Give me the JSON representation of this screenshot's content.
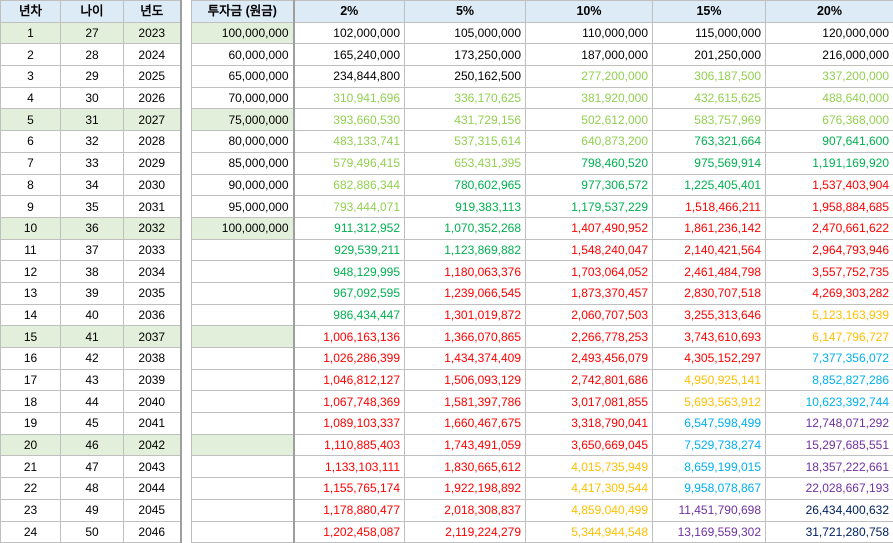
{
  "headers": {
    "year_no": "년차",
    "age": "나이",
    "year": "년도",
    "investment": "투자금 (원금)",
    "rates": [
      "2%",
      "5%",
      "10%",
      "15%",
      "20%"
    ]
  },
  "colors": {
    "black": "#000000",
    "lightgreen": "#92d050",
    "green": "#00b050",
    "red": "#ff0000",
    "orange": "#ffc000",
    "skyblue": "#00b0f0",
    "blue": "#0070c0",
    "purple": "#7030a0",
    "navy": "#002060",
    "row_highlight": "#e2efda",
    "header_bg": "#ddebf7"
  },
  "rows": [
    {
      "n": "1",
      "age": "27",
      "year": "2023",
      "invest": "100,000,000",
      "highlight": true,
      "vals": [
        "102,000,000",
        "105,000,000",
        "110,000,000",
        "115,000,000",
        "120,000,000"
      ],
      "colors": [
        "black",
        "black",
        "black",
        "black",
        "black"
      ]
    },
    {
      "n": "2",
      "age": "28",
      "year": "2024",
      "invest": "60,000,000",
      "highlight": false,
      "vals": [
        "165,240,000",
        "173,250,000",
        "187,000,000",
        "201,250,000",
        "216,000,000"
      ],
      "colors": [
        "black",
        "black",
        "black",
        "black",
        "black"
      ]
    },
    {
      "n": "3",
      "age": "29",
      "year": "2025",
      "invest": "65,000,000",
      "highlight": false,
      "vals": [
        "234,844,800",
        "250,162,500",
        "277,200,000",
        "306,187,500",
        "337,200,000"
      ],
      "colors": [
        "black",
        "black",
        "lightgreen",
        "lightgreen",
        "lightgreen"
      ]
    },
    {
      "n": "4",
      "age": "30",
      "year": "2026",
      "invest": "70,000,000",
      "highlight": false,
      "vals": [
        "310,941,696",
        "336,170,625",
        "381,920,000",
        "432,615,625",
        "488,640,000"
      ],
      "colors": [
        "lightgreen",
        "lightgreen",
        "lightgreen",
        "lightgreen",
        "lightgreen"
      ]
    },
    {
      "n": "5",
      "age": "31",
      "year": "2027",
      "invest": "75,000,000",
      "highlight": true,
      "vals": [
        "393,660,530",
        "431,729,156",
        "502,612,000",
        "583,757,969",
        "676,368,000"
      ],
      "colors": [
        "lightgreen",
        "lightgreen",
        "lightgreen",
        "lightgreen",
        "lightgreen"
      ]
    },
    {
      "n": "6",
      "age": "32",
      "year": "2028",
      "invest": "80,000,000",
      "highlight": false,
      "vals": [
        "483,133,741",
        "537,315,614",
        "640,873,200",
        "763,321,664",
        "907,641,600"
      ],
      "colors": [
        "lightgreen",
        "lightgreen",
        "lightgreen",
        "green",
        "green"
      ]
    },
    {
      "n": "7",
      "age": "33",
      "year": "2029",
      "invest": "85,000,000",
      "highlight": false,
      "vals": [
        "579,496,415",
        "653,431,395",
        "798,460,520",
        "975,569,914",
        "1,191,169,920"
      ],
      "colors": [
        "lightgreen",
        "lightgreen",
        "green",
        "green",
        "green"
      ]
    },
    {
      "n": "8",
      "age": "34",
      "year": "2030",
      "invest": "90,000,000",
      "highlight": false,
      "vals": [
        "682,886,344",
        "780,602,965",
        "977,306,572",
        "1,225,405,401",
        "1,537,403,904"
      ],
      "colors": [
        "lightgreen",
        "green",
        "green",
        "green",
        "red"
      ]
    },
    {
      "n": "9",
      "age": "35",
      "year": "2031",
      "invest": "95,000,000",
      "highlight": false,
      "vals": [
        "793,444,071",
        "919,383,113",
        "1,179,537,229",
        "1,518,466,211",
        "1,958,884,685"
      ],
      "colors": [
        "lightgreen",
        "green",
        "green",
        "red",
        "red"
      ]
    },
    {
      "n": "10",
      "age": "36",
      "year": "2032",
      "invest": "100,000,000",
      "highlight": true,
      "vals": [
        "911,312,952",
        "1,070,352,268",
        "1,407,490,952",
        "1,861,236,142",
        "2,470,661,622"
      ],
      "colors": [
        "green",
        "green",
        "red",
        "red",
        "red"
      ]
    },
    {
      "n": "11",
      "age": "37",
      "year": "2033",
      "invest": "",
      "highlight": false,
      "vals": [
        "929,539,211",
        "1,123,869,882",
        "1,548,240,047",
        "2,140,421,564",
        "2,964,793,946"
      ],
      "colors": [
        "green",
        "green",
        "red",
        "red",
        "red"
      ]
    },
    {
      "n": "12",
      "age": "38",
      "year": "2034",
      "invest": "",
      "highlight": false,
      "vals": [
        "948,129,995",
        "1,180,063,376",
        "1,703,064,052",
        "2,461,484,798",
        "3,557,752,735"
      ],
      "colors": [
        "green",
        "red",
        "red",
        "red",
        "red"
      ]
    },
    {
      "n": "13",
      "age": "39",
      "year": "2035",
      "invest": "",
      "highlight": false,
      "vals": [
        "967,092,595",
        "1,239,066,545",
        "1,873,370,457",
        "2,830,707,518",
        "4,269,303,282"
      ],
      "colors": [
        "green",
        "red",
        "red",
        "red",
        "red"
      ]
    },
    {
      "n": "14",
      "age": "40",
      "year": "2036",
      "invest": "",
      "highlight": false,
      "vals": [
        "986,434,447",
        "1,301,019,872",
        "2,060,707,503",
        "3,255,313,646",
        "5,123,163,939"
      ],
      "colors": [
        "green",
        "red",
        "red",
        "red",
        "orange"
      ]
    },
    {
      "n": "15",
      "age": "41",
      "year": "2037",
      "invest": "",
      "highlight": true,
      "vals": [
        "1,006,163,136",
        "1,366,070,865",
        "2,266,778,253",
        "3,743,610,693",
        "6,147,796,727"
      ],
      "colors": [
        "red",
        "red",
        "red",
        "red",
        "orange"
      ]
    },
    {
      "n": "16",
      "age": "42",
      "year": "2038",
      "invest": "",
      "highlight": false,
      "vals": [
        "1,026,286,399",
        "1,434,374,409",
        "2,493,456,079",
        "4,305,152,297",
        "7,377,356,072"
      ],
      "colors": [
        "red",
        "red",
        "red",
        "red",
        "skyblue"
      ]
    },
    {
      "n": "17",
      "age": "43",
      "year": "2039",
      "invest": "",
      "highlight": false,
      "vals": [
        "1,046,812,127",
        "1,506,093,129",
        "2,742,801,686",
        "4,950,925,141",
        "8,852,827,286"
      ],
      "colors": [
        "red",
        "red",
        "red",
        "orange",
        "skyblue"
      ]
    },
    {
      "n": "18",
      "age": "44",
      "year": "2040",
      "invest": "",
      "highlight": false,
      "vals": [
        "1,067,748,369",
        "1,581,397,786",
        "3,017,081,855",
        "5,693,563,912",
        "10,623,392,744"
      ],
      "colors": [
        "red",
        "red",
        "red",
        "orange",
        "skyblue"
      ]
    },
    {
      "n": "19",
      "age": "45",
      "year": "2041",
      "invest": "",
      "highlight": false,
      "vals": [
        "1,089,103,337",
        "1,660,467,675",
        "3,318,790,041",
        "6,547,598,499",
        "12,748,071,292"
      ],
      "colors": [
        "red",
        "red",
        "red",
        "skyblue",
        "purple"
      ]
    },
    {
      "n": "20",
      "age": "46",
      "year": "2042",
      "invest": "",
      "highlight": true,
      "vals": [
        "1,110,885,403",
        "1,743,491,059",
        "3,650,669,045",
        "7,529,738,274",
        "15,297,685,551"
      ],
      "colors": [
        "red",
        "red",
        "red",
        "skyblue",
        "purple"
      ]
    },
    {
      "n": "21",
      "age": "47",
      "year": "2043",
      "invest": "",
      "highlight": false,
      "vals": [
        "1,133,103,111",
        "1,830,665,612",
        "4,015,735,949",
        "8,659,199,015",
        "18,357,222,661"
      ],
      "colors": [
        "red",
        "red",
        "orange",
        "skyblue",
        "purple"
      ]
    },
    {
      "n": "22",
      "age": "48",
      "year": "2044",
      "invest": "",
      "highlight": false,
      "vals": [
        "1,155,765,174",
        "1,922,198,892",
        "4,417,309,544",
        "9,958,078,867",
        "22,028,667,193"
      ],
      "colors": [
        "red",
        "red",
        "orange",
        "skyblue",
        "purple"
      ]
    },
    {
      "n": "23",
      "age": "49",
      "year": "2045",
      "invest": "",
      "highlight": false,
      "vals": [
        "1,178,880,477",
        "2,018,308,837",
        "4,859,040,499",
        "11,451,790,698",
        "26,434,400,632"
      ],
      "colors": [
        "red",
        "red",
        "orange",
        "purple",
        "navy"
      ]
    },
    {
      "n": "24",
      "age": "50",
      "year": "2046",
      "invest": "",
      "highlight": false,
      "vals": [
        "1,202,458,087",
        "2,119,224,279",
        "5,344,944,548",
        "13,169,559,302",
        "31,721,280,758"
      ],
      "colors": [
        "red",
        "red",
        "orange",
        "purple",
        "navy"
      ]
    }
  ]
}
